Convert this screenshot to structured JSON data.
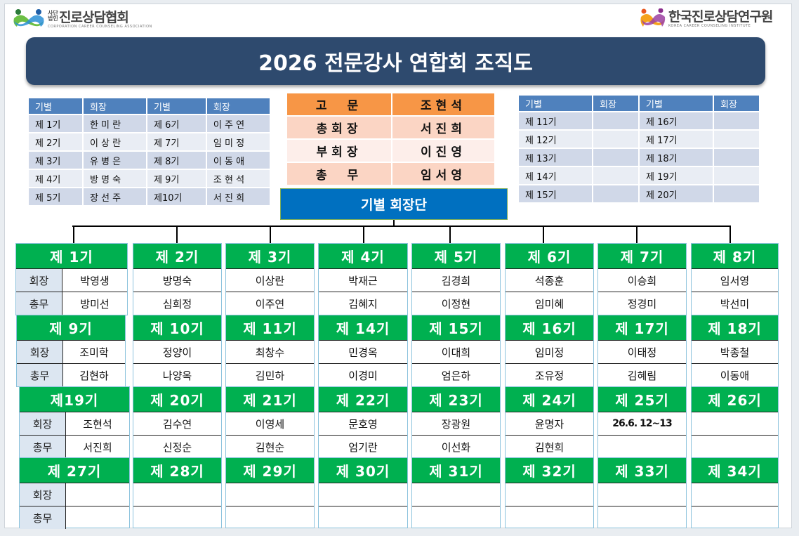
{
  "logos": {
    "left": {
      "small": "사단법인",
      "main": "진로상담협회",
      "sub": "CORPORATION CAREER COUNSELING ASSOCIATION"
    },
    "right": {
      "main": "한국진로상담연구원",
      "sub": "KOREA CAREER COUNSELING INSTITUTE"
    }
  },
  "title": "2026 전문강사 연합회 조직도",
  "left_table": {
    "headers": [
      "기별",
      "회장",
      "기별",
      "회장"
    ],
    "rows": [
      [
        "제 1기",
        "한 미 란",
        "제 6기",
        "이 주 연"
      ],
      [
        "제 2기",
        "이 상 란",
        "제 7기",
        "임 미 정"
      ],
      [
        "제 3기",
        "유 병 은",
        "제 8기",
        "이 동 애"
      ],
      [
        "제 4기",
        "방 명 숙",
        "제 9기",
        "조 현 석"
      ],
      [
        "제 5기",
        "장 선 주",
        "제10기",
        "서 진 희"
      ]
    ]
  },
  "officers": [
    [
      "고　문",
      "조현석"
    ],
    [
      "총회장",
      "서진희"
    ],
    [
      "부회장",
      "이진영"
    ],
    [
      "총　무",
      "임서영"
    ]
  ],
  "council_label": "기별 회장단",
  "right_table": {
    "headers": [
      "기별",
      "회장",
      "기별",
      "회장"
    ],
    "rows": [
      [
        "제 11기",
        "",
        "제 16기",
        ""
      ],
      [
        "제 12기",
        "",
        "제 17기",
        ""
      ],
      [
        "제 13기",
        "",
        "제 18기",
        ""
      ],
      [
        "제 14기",
        "",
        "제 19기",
        ""
      ],
      [
        "제 15기",
        "",
        "제 20기",
        ""
      ]
    ]
  },
  "row_labels": [
    "회장",
    "총무"
  ],
  "blocks": [
    [
      {
        "label": "제 1기",
        "president": "박영생",
        "secretary": "방미선"
      },
      {
        "label": "제 2기",
        "president": "방명숙",
        "secretary": "심희정"
      },
      {
        "label": "제 3기",
        "president": "이상란",
        "secretary": "이주연"
      },
      {
        "label": "제 4기",
        "president": "박재근",
        "secretary": "김혜지"
      },
      {
        "label": "제 5기",
        "president": "김경희",
        "secretary": "이정현"
      },
      {
        "label": "제 6기",
        "president": "석종훈",
        "secretary": "임미혜"
      },
      {
        "label": "제 7기",
        "president": "이승희",
        "secretary": "정경미"
      },
      {
        "label": "제 8기",
        "president": "임서영",
        "secretary": "박선미"
      }
    ],
    [
      {
        "label": "제 9기",
        "president": "조미학",
        "secretary": "김현하"
      },
      {
        "label": "제 10기",
        "president": "정양이",
        "secretary": "나양옥"
      },
      {
        "label": "제 11기",
        "president": "최창수",
        "secretary": "김민하"
      },
      {
        "label": "제 14기",
        "president": "민경옥",
        "secretary": "이경미"
      },
      {
        "label": "제 15기",
        "president": "이대희",
        "secretary": "엄은하"
      },
      {
        "label": "제 16기",
        "president": "임미정",
        "secretary": "조유정"
      },
      {
        "label": "제 17기",
        "president": "이태정",
        "secretary": "김혜림"
      },
      {
        "label": "제 18기",
        "president": "박종철",
        "secretary": "이동애"
      }
    ],
    [
      {
        "label": "제19기",
        "president": "조현석",
        "secretary": "서진희"
      },
      {
        "label": "제 20기",
        "president": "김수연",
        "secretary": "신정순"
      },
      {
        "label": "제 21기",
        "president": "이영세",
        "secretary": "김현순"
      },
      {
        "label": "제 22기",
        "president": "문호영",
        "secretary": "엄기란"
      },
      {
        "label": "제 23기",
        "president": "장광원",
        "secretary": "이선화"
      },
      {
        "label": "제 24기",
        "president": "윤명자",
        "secretary": "김현희"
      },
      {
        "label": "제 25기",
        "president": "26.6. 12~13",
        "secretary": ""
      },
      {
        "label": "제 26기",
        "president": "",
        "secretary": ""
      }
    ],
    [
      {
        "label": "제 27기",
        "president": "",
        "secretary": ""
      },
      {
        "label": "제 28기",
        "president": "",
        "secretary": ""
      },
      {
        "label": "제 29기",
        "president": "",
        "secretary": ""
      },
      {
        "label": "제 30기",
        "president": "",
        "secretary": ""
      },
      {
        "label": "제 31기",
        "president": "",
        "secretary": ""
      },
      {
        "label": "제 32기",
        "president": "",
        "secretary": ""
      },
      {
        "label": "제 33기",
        "president": "",
        "secretary": ""
      },
      {
        "label": "제 34기",
        "president": "",
        "secretary": ""
      }
    ]
  ],
  "colors": {
    "title_bg": "#2e4a6e",
    "cohort_header": "#00b050",
    "table_header": "#4f81bd",
    "advisor": "#f79646",
    "council_box": "#0070c0"
  }
}
